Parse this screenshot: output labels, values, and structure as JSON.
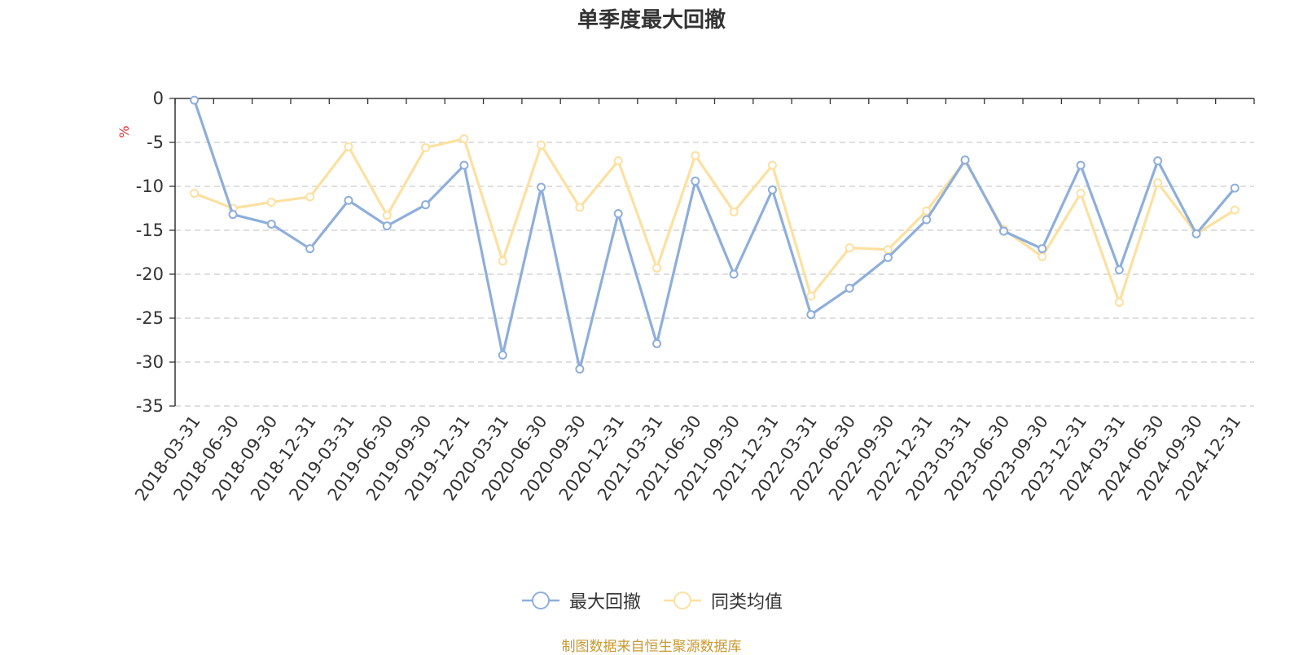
{
  "chart_data": {
    "type": "line",
    "title": "单季度最大回撤",
    "ylabel": "%",
    "ylim": [
      -35,
      0
    ],
    "yticks": [
      0,
      -5,
      -10,
      -15,
      -20,
      -25,
      -30,
      -35
    ],
    "grid": true,
    "legend_position": "bottom-center",
    "categories": [
      "2018-03-31",
      "2018-06-30",
      "2018-09-30",
      "2018-12-31",
      "2019-03-31",
      "2019-06-30",
      "2019-09-30",
      "2019-12-31",
      "2020-03-31",
      "2020-06-30",
      "2020-09-30",
      "2020-12-31",
      "2021-03-31",
      "2021-06-30",
      "2021-09-30",
      "2021-12-31",
      "2022-03-31",
      "2022-06-30",
      "2022-09-30",
      "2022-12-31",
      "2023-03-31",
      "2023-06-30",
      "2023-09-30",
      "2023-12-31",
      "2024-03-31",
      "2024-06-30",
      "2024-09-30",
      "2024-12-31"
    ],
    "series": [
      {
        "name": "最大回撤",
        "color": "#8eaedb",
        "values": [
          -0.2,
          -13.2,
          -14.3,
          -17.1,
          -11.6,
          -14.5,
          -12.1,
          -7.6,
          -29.2,
          -10.1,
          -30.8,
          -13.1,
          -27.9,
          -9.4,
          -20.0,
          -10.4,
          -24.6,
          -21.6,
          -18.1,
          -13.8,
          -7.0,
          -15.1,
          -17.1,
          -7.6,
          -19.5,
          -7.1,
          -15.4,
          -10.2
        ]
      },
      {
        "name": "同类均值",
        "color": "#fde0a0",
        "values": [
          -10.8,
          -12.5,
          -11.8,
          -11.2,
          -5.5,
          -13.3,
          -5.6,
          -4.6,
          -18.5,
          -5.3,
          -12.4,
          -7.1,
          -19.3,
          -6.5,
          -12.9,
          -7.6,
          -22.5,
          -17.0,
          -17.2,
          -12.8,
          -7.1,
          -14.9,
          -18.0,
          -10.8,
          -23.2,
          -9.6,
          -15.4,
          -12.7
        ]
      }
    ]
  },
  "footer": {
    "source": "制图数据来自恒生聚源数据库"
  }
}
